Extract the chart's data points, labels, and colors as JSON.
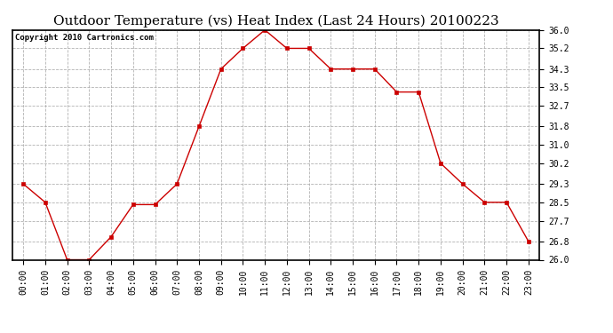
{
  "title": "Outdoor Temperature (vs) Heat Index (Last 24 Hours) 20100223",
  "copyright": "Copyright 2010 Cartronics.com",
  "x_labels": [
    "00:00",
    "01:00",
    "02:00",
    "03:00",
    "04:00",
    "05:00",
    "06:00",
    "07:00",
    "08:00",
    "09:00",
    "10:00",
    "11:00",
    "12:00",
    "13:00",
    "14:00",
    "15:00",
    "16:00",
    "17:00",
    "18:00",
    "19:00",
    "20:00",
    "21:00",
    "22:00",
    "23:00"
  ],
  "y_values": [
    29.3,
    28.5,
    26.0,
    26.0,
    27.0,
    28.4,
    28.4,
    29.3,
    31.8,
    34.3,
    35.2,
    36.0,
    35.2,
    35.2,
    34.3,
    34.3,
    34.3,
    33.3,
    33.3,
    30.2,
    29.3,
    28.5,
    28.5,
    26.8
  ],
  "line_color": "#cc0000",
  "marker_color": "#cc0000",
  "marker": "s",
  "marker_size": 3,
  "background_color": "#ffffff",
  "grid_color": "#aaaaaa",
  "ylim_min": 26.0,
  "ylim_max": 36.0,
  "yticks": [
    26.0,
    26.8,
    27.7,
    28.5,
    29.3,
    30.2,
    31.0,
    31.8,
    32.7,
    33.5,
    34.3,
    35.2,
    36.0
  ],
  "title_fontsize": 11,
  "copyright_fontsize": 6.5,
  "tick_fontsize": 7,
  "fig_bg_color": "#ffffff"
}
